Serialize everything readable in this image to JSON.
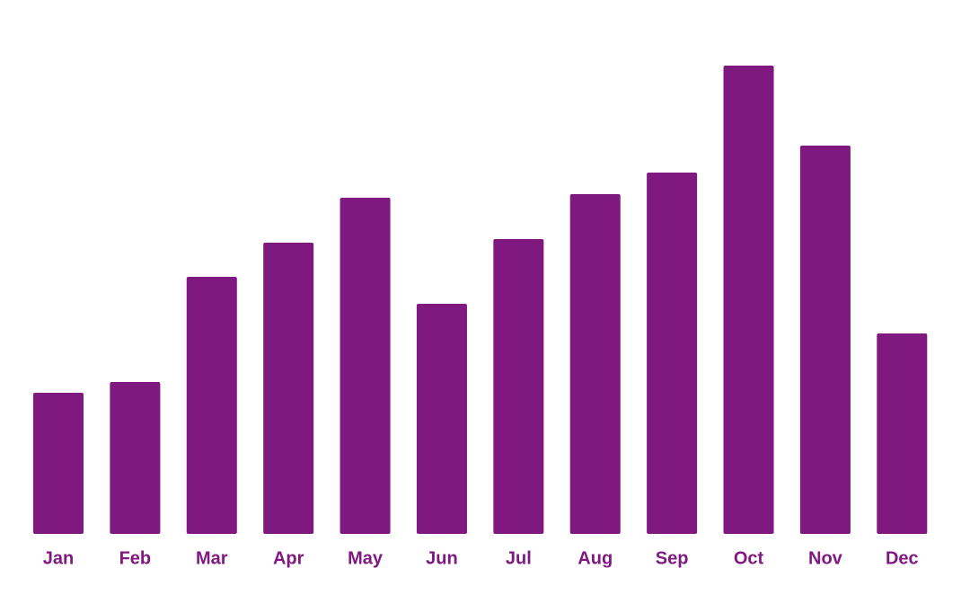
{
  "chart_data": {
    "type": "bar",
    "categories": [
      "Jan",
      "Feb",
      "Mar",
      "Apr",
      "May",
      "Jun",
      "Jul",
      "Aug",
      "Sep",
      "Oct",
      "Nov",
      "Dec"
    ],
    "values": [
      157,
      169,
      286,
      324,
      374,
      256,
      328,
      378,
      402,
      521,
      432,
      223
    ],
    "color": "#7f187f",
    "ylim": [
      0,
      550
    ]
  }
}
